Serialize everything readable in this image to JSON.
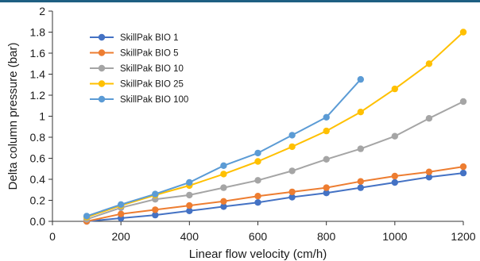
{
  "page": {
    "accent_color": "#1e5f82"
  },
  "chart_data": {
    "type": "line",
    "title": "",
    "xlabel": "Linear flow velocity (cm/h)",
    "ylabel": "Delta column pressure (bar)",
    "xlim": [
      0,
      1200
    ],
    "ylim": [
      0,
      2
    ],
    "x_ticks": [
      "0",
      "200",
      "400",
      "600",
      "800",
      "1000",
      "1200"
    ],
    "y_ticks": [
      "0.0",
      "0.2",
      "0.4",
      "0.6",
      "0.8",
      "1",
      "1.2",
      "1.4",
      "1.6",
      "1.8",
      "2"
    ],
    "grid": false,
    "legend_position": "top-left",
    "series": [
      {
        "name": "SkillPak BIO 1",
        "color": "#4472c4",
        "x": [
          100,
          200,
          300,
          400,
          500,
          600,
          700,
          800,
          900,
          1000,
          1100,
          1200
        ],
        "y": [
          0.0,
          0.03,
          0.06,
          0.1,
          0.14,
          0.18,
          0.23,
          0.27,
          0.32,
          0.37,
          0.42,
          0.46
        ]
      },
      {
        "name": "SkillPak BIO 5",
        "color": "#ed7d31",
        "x": [
          100,
          200,
          300,
          400,
          500,
          600,
          700,
          800,
          900,
          1000,
          1100,
          1200
        ],
        "y": [
          0.0,
          0.07,
          0.11,
          0.15,
          0.19,
          0.24,
          0.28,
          0.32,
          0.38,
          0.43,
          0.47,
          0.52
        ]
      },
      {
        "name": "SkillPak BIO 10",
        "color": "#a5a5a5",
        "x": [
          100,
          200,
          300,
          400,
          500,
          600,
          700,
          800,
          900,
          1000,
          1100,
          1200
        ],
        "y": [
          0.02,
          0.13,
          0.21,
          0.25,
          0.32,
          0.39,
          0.48,
          0.59,
          0.69,
          0.81,
          0.98,
          1.14
        ]
      },
      {
        "name": "SkillPak BIO 25",
        "color": "#ffc000",
        "x": [
          100,
          200,
          300,
          400,
          500,
          600,
          700,
          800,
          900,
          1000,
          1100,
          1200
        ],
        "y": [
          0.04,
          0.15,
          0.25,
          0.34,
          0.45,
          0.57,
          0.71,
          0.86,
          1.04,
          1.26,
          1.5,
          1.8
        ]
      },
      {
        "name": "SkillPak BIO 100",
        "color": "#5b9bd5",
        "x": [
          100,
          200,
          300,
          400,
          500,
          600,
          700,
          800,
          900
        ],
        "y": [
          0.05,
          0.16,
          0.26,
          0.37,
          0.53,
          0.65,
          0.82,
          0.99,
          1.35
        ]
      }
    ]
  }
}
